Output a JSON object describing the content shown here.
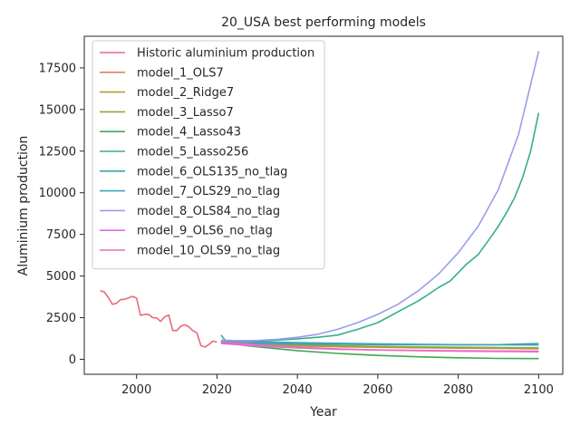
{
  "chart_data": {
    "type": "line",
    "title": "20_USA best performing models",
    "xlabel": "Year",
    "ylabel": "Aluminium production",
    "xlim": [
      1987,
      2106
    ],
    "ylim": [
      -900,
      19400
    ],
    "xticks": [
      2000,
      2020,
      2040,
      2060,
      2080,
      2100
    ],
    "yticks": [
      0,
      2500,
      5000,
      7500,
      10000,
      12500,
      15000,
      17500
    ],
    "grid": false,
    "legend_position": "upper-left",
    "series": [
      {
        "name": "Historic aluminium production",
        "color": "#e8697e",
        "x": [
          1991,
          1992,
          1993,
          1994,
          1995,
          1996,
          1997,
          1998,
          1999,
          2000,
          2001,
          2002,
          2003,
          2004,
          2005,
          2006,
          2007,
          2008,
          2009,
          2010,
          2011,
          2012,
          2013,
          2014,
          2015,
          2016,
          2017,
          2018,
          2019,
          2020
        ],
        "y": [
          4120,
          4040,
          3700,
          3300,
          3360,
          3580,
          3600,
          3690,
          3780,
          3670,
          2640,
          2700,
          2700,
          2500,
          2480,
          2280,
          2550,
          2660,
          1730,
          1730,
          1990,
          2070,
          1950,
          1720,
          1590,
          820,
          740,
          890,
          1090,
          1030
        ]
      },
      {
        "name": "model_1_OLS7",
        "color": "#e3825b",
        "x": [
          2021,
          2030,
          2040,
          2050,
          2060,
          2070,
          2080,
          2090,
          2100
        ],
        "y": [
          1000,
          900,
          800,
          750,
          720,
          690,
          670,
          650,
          630
        ]
      },
      {
        "name": "model_2_Ridge7",
        "color": "#b59c2f",
        "x": [
          2021,
          2030,
          2040,
          2050,
          2060,
          2070,
          2080,
          2090,
          2100
        ],
        "y": [
          1010,
          950,
          870,
          810,
          770,
          740,
          720,
          700,
          690
        ]
      },
      {
        "name": "model_3_Lasso7",
        "color": "#8aaa39",
        "x": [
          2021,
          2030,
          2040,
          2050,
          2060,
          2070,
          2080,
          2090,
          2100
        ],
        "y": [
          1000,
          940,
          860,
          800,
          760,
          730,
          710,
          690,
          680
        ]
      },
      {
        "name": "model_4_Lasso43",
        "color": "#3aad4d",
        "x": [
          2021,
          2030,
          2040,
          2050,
          2060,
          2070,
          2080,
          2090,
          2100
        ],
        "y": [
          1000,
          750,
          520,
          350,
          230,
          150,
          90,
          55,
          40
        ]
      },
      {
        "name": "model_5_Lasso256",
        "color": "#36ae8e",
        "x": [
          2021,
          2022,
          2023,
          2025,
          2030,
          2035,
          2040,
          2045,
          2050,
          2055,
          2060,
          2065,
          2070,
          2072,
          2075,
          2078,
          2080,
          2082,
          2085,
          2088,
          2090,
          2092,
          2094,
          2096,
          2098,
          2100
        ],
        "y": [
          1450,
          1150,
          1080,
          1060,
          1100,
          1150,
          1230,
          1320,
          1450,
          1800,
          2200,
          2850,
          3500,
          3800,
          4300,
          4700,
          5200,
          5700,
          6300,
          7300,
          8000,
          8800,
          9700,
          10900,
          12500,
          14800
        ]
      },
      {
        "name": "model_6_OLS135_no_tlag",
        "color": "#38a8a4",
        "x": [
          2021,
          2030,
          2040,
          2050,
          2060,
          2070,
          2080,
          2090,
          2100
        ],
        "y": [
          1000,
          960,
          930,
          900,
          880,
          870,
          870,
          880,
          950
        ]
      },
      {
        "name": "model_7_OLS29_no_tlag",
        "color": "#3aa5c0",
        "x": [
          2021,
          2030,
          2040,
          2050,
          2060,
          2070,
          2080,
          2090,
          2100
        ],
        "y": [
          1100,
          1050,
          1000,
          960,
          930,
          900,
          880,
          870,
          860
        ]
      },
      {
        "name": "model_8_OLS84_no_tlag",
        "color": "#9a9ded",
        "x": [
          2021,
          2025,
          2030,
          2035,
          2040,
          2045,
          2050,
          2055,
          2060,
          2065,
          2070,
          2075,
          2080,
          2085,
          2090,
          2095,
          2100
        ],
        "y": [
          1150,
          1120,
          1130,
          1200,
          1320,
          1500,
          1800,
          2200,
          2700,
          3300,
          4100,
          5100,
          6400,
          8000,
          10200,
          13500,
          18500
        ]
      },
      {
        "name": "model_9_OLS6_no_tlag",
        "color": "#d96ee0",
        "x": [
          2021,
          2030,
          2040,
          2050,
          2060,
          2070,
          2080,
          2090,
          2100
        ],
        "y": [
          950,
          800,
          680,
          600,
          560,
          530,
          510,
          500,
          490
        ]
      },
      {
        "name": "model_10_OLS9_no_tlag",
        "color": "#eb6cb9",
        "x": [
          2021,
          2030,
          2040,
          2050,
          2060,
          2070,
          2080,
          2090,
          2100
        ],
        "y": [
          1050,
          880,
          720,
          620,
          560,
          520,
          490,
          470,
          450
        ]
      }
    ]
  }
}
